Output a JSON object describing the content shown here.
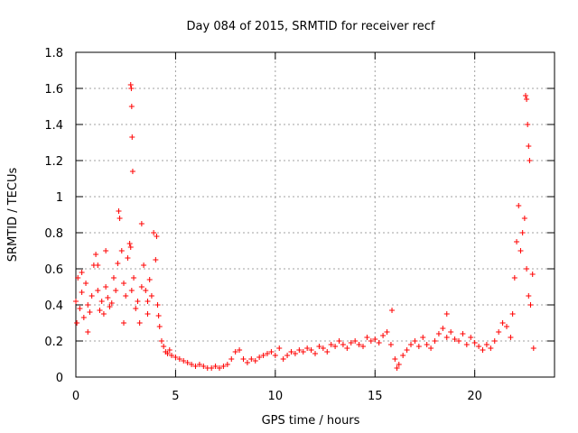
{
  "chart_data": {
    "type": "scatter",
    "title": "Day 084 of 2015, SRMTID for receiver recf",
    "xlabel": "GPS time / hours",
    "ylabel": "SRMTID / TECUs",
    "xlim": [
      0,
      24
    ],
    "ylim": [
      0,
      1.8
    ],
    "xticks": [
      0,
      5,
      10,
      15,
      20
    ],
    "xtick_labels": [
      "0",
      "5",
      "10",
      "15",
      "20"
    ],
    "yticks": [
      0,
      0.2,
      0.4,
      0.6,
      0.8,
      1,
      1.2,
      1.4,
      1.6,
      1.8
    ],
    "ytick_labels": [
      "0",
      "0.2",
      "0.4",
      "0.6",
      "0.8",
      "1",
      "1.2",
      "1.4",
      "1.6",
      "1.8"
    ],
    "grid": true,
    "marker": "+",
    "color": "#ff0000",
    "series": [
      {
        "name": "SRMTID",
        "x": [
          0.0,
          0.1,
          0.2,
          0.3,
          0.4,
          0.5,
          0.6,
          0.7,
          0.8,
          0.9,
          1.0,
          1.1,
          1.2,
          1.3,
          1.4,
          1.5,
          1.6,
          1.7,
          1.8,
          1.9,
          2.0,
          2.1,
          2.2,
          2.3,
          2.4,
          2.5,
          2.6,
          2.7,
          2.75,
          2.8,
          2.9,
          3.0,
          3.1,
          3.2,
          3.3,
          3.4,
          3.5,
          3.6,
          3.7,
          3.8,
          3.9,
          4.0,
          4.1,
          4.2,
          4.3,
          4.4,
          4.5,
          4.6,
          4.7,
          4.8,
          5.0,
          5.2,
          5.4,
          5.6,
          5.8,
          6.0,
          6.2,
          6.4,
          6.6,
          6.8,
          7.0,
          7.2,
          7.4,
          7.6,
          7.8,
          8.0,
          8.2,
          8.4,
          8.6,
          8.8,
          9.0,
          9.2,
          9.4,
          9.6,
          9.8,
          10.0,
          10.2,
          10.4,
          10.6,
          10.8,
          11.0,
          11.2,
          11.4,
          11.6,
          11.8,
          12.0,
          12.2,
          12.4,
          12.6,
          12.8,
          13.0,
          13.2,
          13.4,
          13.6,
          13.8,
          14.0,
          14.2,
          14.4,
          14.6,
          14.8,
          15.0,
          15.2,
          15.4,
          15.6,
          15.8,
          16.0,
          16.2,
          16.4,
          16.6,
          16.8,
          17.0,
          17.2,
          17.4,
          17.6,
          17.8,
          18.0,
          18.2,
          18.4,
          18.6,
          18.8,
          19.0,
          19.2,
          19.4,
          19.6,
          19.8,
          20.0,
          20.2,
          20.4,
          20.6,
          20.8,
          21.0,
          21.2,
          21.4,
          21.6,
          21.8,
          21.9,
          22.0,
          22.1,
          22.2,
          22.3,
          22.4,
          22.5,
          22.6,
          22.7,
          22.8,
          22.9,
          2.75,
          2.78,
          2.8,
          2.82,
          2.85,
          22.55,
          22.6,
          22.65,
          22.7,
          22.75,
          0.05,
          0.3,
          0.6,
          1.1,
          1.5,
          2.15,
          2.4,
          3.3,
          3.6,
          4.05,
          4.15,
          15.85,
          16.1,
          18.6,
          22.95
        ],
        "y": [
          0.42,
          0.55,
          0.38,
          0.47,
          0.33,
          0.52,
          0.4,
          0.36,
          0.45,
          0.62,
          0.68,
          0.48,
          0.37,
          0.42,
          0.35,
          0.5,
          0.44,
          0.39,
          0.41,
          0.55,
          0.48,
          0.63,
          0.88,
          0.7,
          0.52,
          0.45,
          0.66,
          0.74,
          0.72,
          0.48,
          0.55,
          0.38,
          0.42,
          0.3,
          0.5,
          0.62,
          0.48,
          0.35,
          0.54,
          0.45,
          0.8,
          0.65,
          0.4,
          0.28,
          0.2,
          0.17,
          0.14,
          0.13,
          0.15,
          0.12,
          0.11,
          0.1,
          0.09,
          0.08,
          0.07,
          0.06,
          0.07,
          0.06,
          0.05,
          0.05,
          0.06,
          0.05,
          0.06,
          0.07,
          0.1,
          0.14,
          0.15,
          0.1,
          0.08,
          0.1,
          0.09,
          0.11,
          0.12,
          0.13,
          0.14,
          0.12,
          0.16,
          0.1,
          0.12,
          0.14,
          0.13,
          0.15,
          0.14,
          0.16,
          0.15,
          0.13,
          0.17,
          0.16,
          0.14,
          0.18,
          0.17,
          0.2,
          0.18,
          0.16,
          0.19,
          0.2,
          0.18,
          0.17,
          0.22,
          0.2,
          0.21,
          0.19,
          0.23,
          0.25,
          0.18,
          0.1,
          0.07,
          0.12,
          0.15,
          0.18,
          0.2,
          0.17,
          0.22,
          0.18,
          0.16,
          0.2,
          0.24,
          0.27,
          0.22,
          0.25,
          0.21,
          0.2,
          0.24,
          0.18,
          0.22,
          0.19,
          0.17,
          0.15,
          0.18,
          0.16,
          0.2,
          0.25,
          0.3,
          0.28,
          0.22,
          0.35,
          0.55,
          0.75,
          0.95,
          0.7,
          0.8,
          0.88,
          0.6,
          0.45,
          0.4,
          0.57,
          1.62,
          1.6,
          1.5,
          1.33,
          1.14,
          1.56,
          1.54,
          1.4,
          1.28,
          1.2,
          0.3,
          0.58,
          0.25,
          0.62,
          0.7,
          0.92,
          0.3,
          0.85,
          0.42,
          0.78,
          0.34,
          0.37,
          0.05,
          0.35,
          0.16
        ]
      }
    ]
  }
}
